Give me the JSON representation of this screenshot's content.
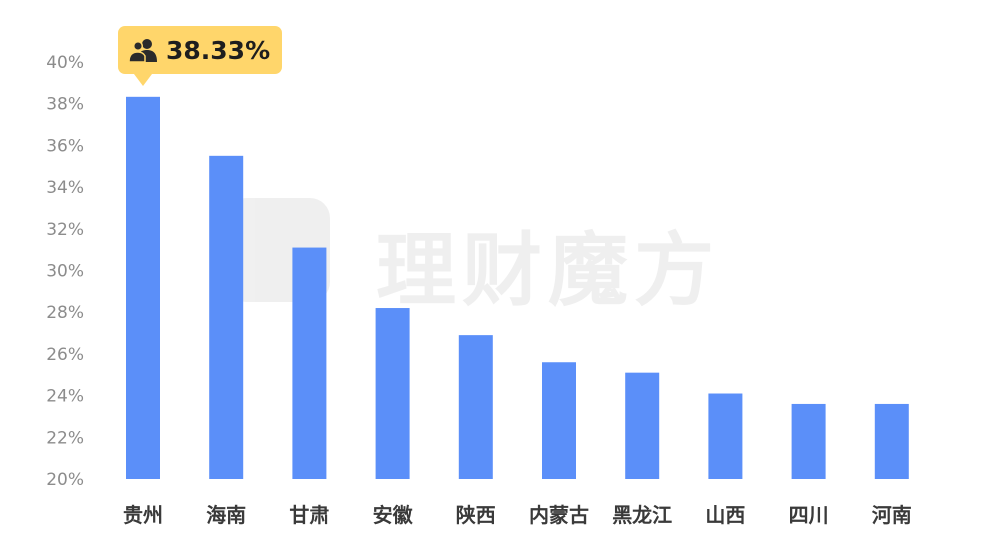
{
  "chart_data": {
    "type": "bar",
    "categories": [
      "贵州",
      "海南",
      "甘肃",
      "安徽",
      "陕西",
      "内蒙古",
      "黑龙江",
      "山西",
      "四川",
      "河南"
    ],
    "values": [
      38.33,
      35.5,
      31.1,
      28.2,
      26.9,
      25.6,
      25.1,
      24.1,
      23.6,
      23.6
    ],
    "ylim": [
      20,
      40
    ],
    "yticks": [
      "20%",
      "22%",
      "24%",
      "26%",
      "28%",
      "30%",
      "32%",
      "34%",
      "36%",
      "38%",
      "40%"
    ],
    "bar_color": "#5b8ff9",
    "grid": false,
    "highlight": {
      "category": "贵州",
      "label": "38.33%",
      "color": "#ffd66b",
      "icon": "users-icon"
    }
  },
  "watermark": {
    "text": "理财魔方"
  }
}
